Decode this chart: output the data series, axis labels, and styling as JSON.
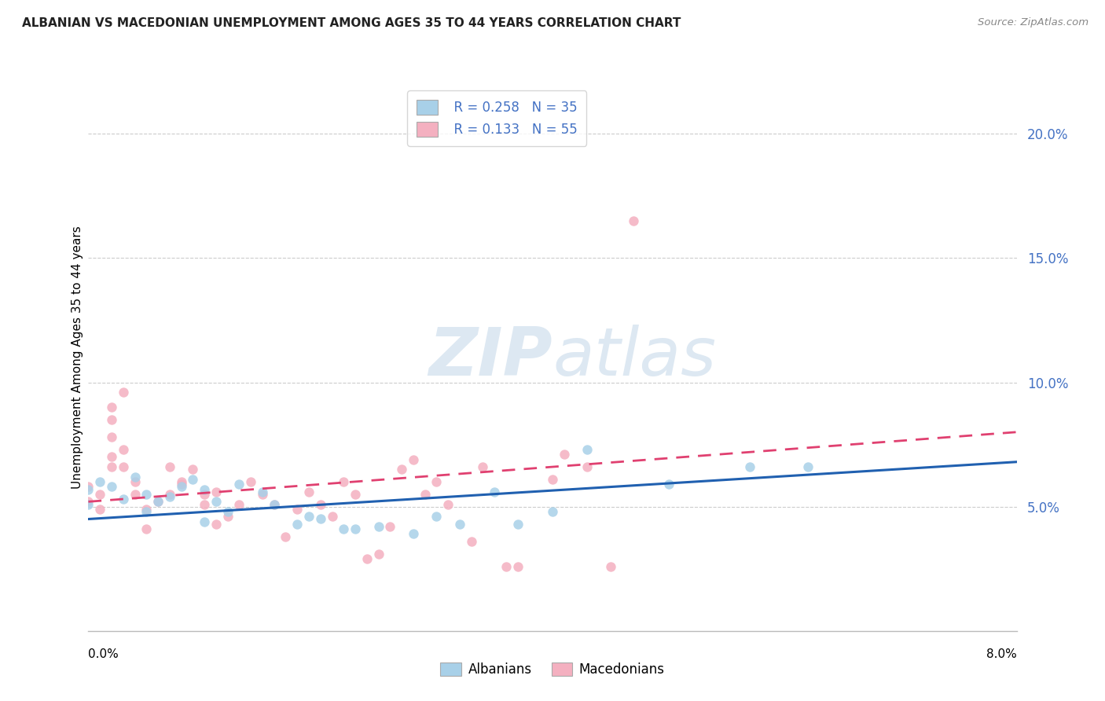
{
  "title": "ALBANIAN VS MACEDONIAN UNEMPLOYMENT AMONG AGES 35 TO 44 YEARS CORRELATION CHART",
  "source": "Source: ZipAtlas.com",
  "ylabel": "Unemployment Among Ages 35 to 44 years",
  "yticks": [
    0.05,
    0.1,
    0.15,
    0.2
  ],
  "ytick_labels": [
    "5.0%",
    "10.0%",
    "15.0%",
    "20.0%"
  ],
  "xlim": [
    0.0,
    0.08
  ],
  "ylim": [
    0.0,
    0.22
  ],
  "legend_r_albanian": "R = 0.258",
  "legend_n_albanian": "N = 35",
  "legend_r_macedonian": "R = 0.133",
  "legend_n_macedonian": "N = 55",
  "albanian_color": "#a8d0e8",
  "macedonian_color": "#f4b0c0",
  "trendline_albanian_color": "#2060b0",
  "trendline_macedonian_color": "#e04070",
  "trendline_albanian_start": 0.045,
  "trendline_albanian_end": 0.068,
  "trendline_macedonian_start": 0.052,
  "trendline_macedonian_end": 0.08,
  "albanian_scatter": [
    [
      0.0,
      0.051
    ],
    [
      0.0,
      0.057
    ],
    [
      0.001,
      0.06
    ],
    [
      0.002,
      0.058
    ],
    [
      0.003,
      0.053
    ],
    [
      0.004,
      0.062
    ],
    [
      0.005,
      0.055
    ],
    [
      0.005,
      0.048
    ],
    [
      0.006,
      0.052
    ],
    [
      0.007,
      0.054
    ],
    [
      0.008,
      0.058
    ],
    [
      0.009,
      0.061
    ],
    [
      0.01,
      0.057
    ],
    [
      0.01,
      0.044
    ],
    [
      0.011,
      0.052
    ],
    [
      0.012,
      0.048
    ],
    [
      0.013,
      0.059
    ],
    [
      0.015,
      0.056
    ],
    [
      0.016,
      0.051
    ],
    [
      0.018,
      0.043
    ],
    [
      0.019,
      0.046
    ],
    [
      0.02,
      0.045
    ],
    [
      0.022,
      0.041
    ],
    [
      0.023,
      0.041
    ],
    [
      0.025,
      0.042
    ],
    [
      0.028,
      0.039
    ],
    [
      0.03,
      0.046
    ],
    [
      0.032,
      0.043
    ],
    [
      0.035,
      0.056
    ],
    [
      0.037,
      0.043
    ],
    [
      0.04,
      0.048
    ],
    [
      0.043,
      0.073
    ],
    [
      0.05,
      0.059
    ],
    [
      0.057,
      0.066
    ],
    [
      0.062,
      0.066
    ]
  ],
  "macedonian_scatter": [
    [
      0.0,
      0.052
    ],
    [
      0.0,
      0.058
    ],
    [
      0.001,
      0.055
    ],
    [
      0.001,
      0.049
    ],
    [
      0.002,
      0.066
    ],
    [
      0.002,
      0.07
    ],
    [
      0.002,
      0.078
    ],
    [
      0.002,
      0.085
    ],
    [
      0.002,
      0.09
    ],
    [
      0.003,
      0.096
    ],
    [
      0.003,
      0.066
    ],
    [
      0.003,
      0.073
    ],
    [
      0.004,
      0.06
    ],
    [
      0.004,
      0.055
    ],
    [
      0.005,
      0.049
    ],
    [
      0.005,
      0.041
    ],
    [
      0.006,
      0.052
    ],
    [
      0.007,
      0.066
    ],
    [
      0.007,
      0.055
    ],
    [
      0.008,
      0.06
    ],
    [
      0.008,
      0.059
    ],
    [
      0.009,
      0.065
    ],
    [
      0.01,
      0.055
    ],
    [
      0.01,
      0.051
    ],
    [
      0.011,
      0.056
    ],
    [
      0.011,
      0.043
    ],
    [
      0.012,
      0.046
    ],
    [
      0.013,
      0.051
    ],
    [
      0.014,
      0.06
    ],
    [
      0.015,
      0.055
    ],
    [
      0.016,
      0.051
    ],
    [
      0.017,
      0.038
    ],
    [
      0.018,
      0.049
    ],
    [
      0.019,
      0.056
    ],
    [
      0.02,
      0.051
    ],
    [
      0.021,
      0.046
    ],
    [
      0.022,
      0.06
    ],
    [
      0.023,
      0.055
    ],
    [
      0.024,
      0.029
    ],
    [
      0.025,
      0.031
    ],
    [
      0.026,
      0.042
    ],
    [
      0.027,
      0.065
    ],
    [
      0.028,
      0.069
    ],
    [
      0.029,
      0.055
    ],
    [
      0.03,
      0.06
    ],
    [
      0.031,
      0.051
    ],
    [
      0.033,
      0.036
    ],
    [
      0.034,
      0.066
    ],
    [
      0.036,
      0.026
    ],
    [
      0.037,
      0.026
    ],
    [
      0.04,
      0.061
    ],
    [
      0.041,
      0.071
    ],
    [
      0.043,
      0.066
    ],
    [
      0.045,
      0.026
    ],
    [
      0.047,
      0.165
    ]
  ]
}
